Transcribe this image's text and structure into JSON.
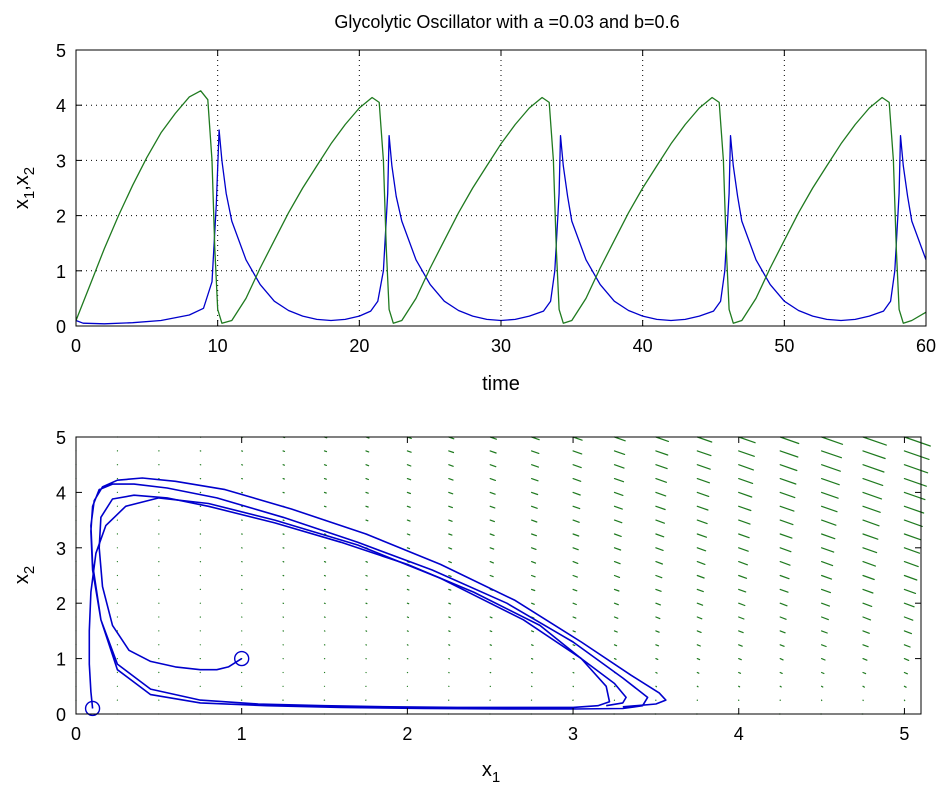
{
  "chart_data": [
    {
      "type": "line",
      "title": "Glycolytic Oscillator with a =0.03 and b=0.6",
      "xlabel": "time",
      "ylabel": {
        "base": "x",
        "sub1": "1",
        "sep": ",",
        "base2": "x",
        "sub2": "2"
      },
      "xlim": [
        0,
        60
      ],
      "ylim": [
        0,
        5
      ],
      "x_ticks": [
        "0",
        "10",
        "20",
        "30",
        "40",
        "50",
        "60"
      ],
      "y_ticks": [
        "0",
        "1",
        "2",
        "3",
        "4",
        "5"
      ],
      "grid": true,
      "colors": {
        "x1": "#0000cc",
        "x2": "#1f7a1f"
      },
      "series": [
        {
          "x": [
            0,
            0.5,
            2,
            4,
            6,
            8,
            9,
            9.6,
            9.9,
            10.1,
            10.3,
            10.6,
            11,
            12,
            13,
            14,
            15,
            16,
            17,
            18,
            19,
            20,
            20.8,
            21.3,
            21.7,
            22,
            22.1,
            22.3,
            22.6,
            23,
            24,
            25,
            26,
            27,
            28,
            29,
            30,
            31,
            32,
            33,
            33.5,
            33.8,
            34.1,
            34.2,
            34.4,
            34.7,
            35,
            36,
            37,
            38,
            39,
            40,
            41,
            42,
            43,
            44,
            45,
            45.5,
            45.8,
            46.1,
            46.2,
            46.4,
            46.7,
            47,
            48,
            49,
            50,
            51,
            52,
            53,
            54,
            55,
            56,
            57,
            57.5,
            57.8,
            58.1,
            58.2,
            58.4,
            58.7,
            59,
            60
          ],
          "values": [
            0.1,
            0.05,
            0.04,
            0.06,
            0.1,
            0.2,
            0.32,
            0.8,
            2.2,
            3.55,
            3.0,
            2.4,
            1.9,
            1.2,
            0.75,
            0.45,
            0.28,
            0.18,
            0.12,
            0.1,
            0.12,
            0.18,
            0.27,
            0.45,
            1.0,
            2.4,
            3.45,
            2.9,
            2.35,
            1.9,
            1.2,
            0.75,
            0.45,
            0.28,
            0.18,
            0.12,
            0.1,
            0.12,
            0.18,
            0.27,
            0.45,
            1.0,
            2.4,
            3.45,
            2.9,
            2.35,
            1.9,
            1.2,
            0.75,
            0.45,
            0.28,
            0.18,
            0.12,
            0.1,
            0.12,
            0.18,
            0.27,
            0.45,
            1.0,
            2.4,
            3.45,
            2.9,
            2.35,
            1.9,
            1.2,
            0.75,
            0.45,
            0.28,
            0.18,
            0.12,
            0.1,
            0.12,
            0.18,
            0.27,
            0.45,
            1.0,
            2.4,
            3.45,
            2.9,
            2.35,
            1.9,
            1.2
          ]
        },
        {
          "x": [
            0,
            1,
            2,
            3,
            4,
            5,
            6,
            7,
            8,
            8.8,
            9.3,
            9.6,
            9.8,
            10,
            10.3,
            11,
            12,
            13,
            14,
            15,
            16,
            17,
            18,
            19,
            20,
            20.9,
            21.4,
            21.7,
            21.9,
            22.1,
            22.4,
            23,
            24,
            25,
            26,
            27,
            28,
            29,
            30,
            31,
            32,
            32.9,
            33.4,
            33.7,
            33.9,
            34.1,
            34.4,
            35,
            36,
            37,
            38,
            39,
            40,
            41,
            42,
            43,
            44,
            44.9,
            45.4,
            45.7,
            45.9,
            46.1,
            46.4,
            47,
            48,
            49,
            50,
            51,
            52,
            53,
            54,
            55,
            56,
            56.9,
            57.4,
            57.7,
            57.9,
            58.1,
            58.4,
            59,
            60
          ],
          "values": [
            0.1,
            0.75,
            1.4,
            2.0,
            2.55,
            3.05,
            3.5,
            3.85,
            4.15,
            4.26,
            4.1,
            3.0,
            1.4,
            0.3,
            0.05,
            0.1,
            0.5,
            1.05,
            1.55,
            2.05,
            2.5,
            2.9,
            3.3,
            3.65,
            3.95,
            4.14,
            4.05,
            3.0,
            1.4,
            0.3,
            0.05,
            0.1,
            0.5,
            1.05,
            1.55,
            2.05,
            2.5,
            2.9,
            3.3,
            3.65,
            3.95,
            4.14,
            4.05,
            3.0,
            1.4,
            0.3,
            0.05,
            0.1,
            0.5,
            1.05,
            1.55,
            2.05,
            2.5,
            2.9,
            3.3,
            3.65,
            3.95,
            4.14,
            4.05,
            3.0,
            1.4,
            0.3,
            0.05,
            0.1,
            0.5,
            1.05,
            1.55,
            2.05,
            2.5,
            2.9,
            3.3,
            3.65,
            3.95,
            4.14,
            4.05,
            3.0,
            1.4,
            0.3,
            0.05,
            0.1,
            0.25
          ]
        }
      ]
    },
    {
      "type": "line",
      "xlabel": {
        "base": "x",
        "sub": "1"
      },
      "ylabel": {
        "base": "x",
        "sub": "2"
      },
      "xlim": [
        0,
        5.1
      ],
      "ylim": [
        0,
        5
      ],
      "x_ticks": [
        "0",
        "1",
        "2",
        "3",
        "4",
        "5"
      ],
      "y_ticks": [
        "0",
        "1",
        "2",
        "3",
        "4",
        "5"
      ],
      "grid": false,
      "colors": {
        "trajectory": "#0000cc",
        "field": "#1f7a1f"
      },
      "trajectories": [
        {
          "x": [
            1.0,
            0.92,
            0.85,
            0.75,
            0.6,
            0.45,
            0.32,
            0.22,
            0.16,
            0.14,
            0.15,
            0.22,
            0.35,
            0.55,
            0.8,
            1.2,
            1.6,
            2.0,
            2.4,
            2.8,
            3.05,
            3.2,
            3.22,
            3.15,
            3.0,
            2.7,
            2.3,
            1.9,
            1.5,
            1.1,
            0.75,
            0.45,
            0.25,
            0.15,
            0.1,
            0.09,
            0.1,
            0.14,
            0.22,
            0.35,
            0.55,
            0.85,
            1.25,
            1.7,
            2.15,
            2.6,
            3.0,
            3.3,
            3.45,
            3.42,
            3.3,
            3.0,
            2.6,
            2.1,
            1.6,
            1.15,
            0.75,
            0.45,
            0.25,
            0.15,
            0.1,
            0.09,
            0.11,
            0.16,
            0.25,
            0.4,
            0.6,
            0.9,
            1.3,
            1.75,
            2.2,
            2.65,
            3.05,
            3.35,
            3.52,
            3.56,
            3.5,
            3.3
          ],
          "values": [
            1.0,
            0.85,
            0.8,
            0.8,
            0.85,
            0.95,
            1.15,
            1.6,
            2.3,
            3.0,
            3.55,
            3.88,
            3.95,
            3.9,
            3.75,
            3.45,
            3.1,
            2.7,
            2.2,
            1.6,
            1.0,
            0.5,
            0.22,
            0.15,
            0.12,
            0.12,
            0.12,
            0.13,
            0.15,
            0.18,
            0.25,
            0.45,
            0.9,
            1.7,
            2.6,
            3.3,
            3.75,
            4.05,
            4.15,
            4.15,
            4.08,
            3.9,
            3.55,
            3.1,
            2.6,
            2.0,
            1.3,
            0.65,
            0.3,
            0.15,
            0.1,
            0.09,
            0.09,
            0.1,
            0.12,
            0.15,
            0.2,
            0.35,
            0.8,
            1.7,
            2.7,
            3.4,
            3.85,
            4.1,
            4.22,
            4.26,
            4.2,
            4.05,
            3.7,
            3.25,
            2.7,
            2.05,
            1.3,
            0.7,
            0.38,
            0.25,
            0.18,
            0.13
          ]
        },
        {
          "x": [
            0.1,
            0.09,
            0.08,
            0.08,
            0.09,
            0.12,
            0.18,
            0.3,
            0.5,
            0.8,
            1.2,
            1.7,
            2.2,
            2.7,
            3.05,
            3.25,
            3.32,
            3.3,
            3.2
          ],
          "values": [
            0.1,
            0.4,
            0.9,
            1.5,
            2.2,
            2.9,
            3.4,
            3.75,
            3.9,
            3.8,
            3.5,
            3.05,
            2.45,
            1.7,
            1.0,
            0.55,
            0.3,
            0.2,
            0.15
          ]
        }
      ],
      "markers": [
        {
          "x": 1.0,
          "y": 1.0
        },
        {
          "x": 0.1,
          "y": 0.1
        }
      ],
      "vector_field": {
        "a": 0.03,
        "b": 0.6,
        "xstep": 0.25,
        "ystep": 0.25
      }
    }
  ]
}
